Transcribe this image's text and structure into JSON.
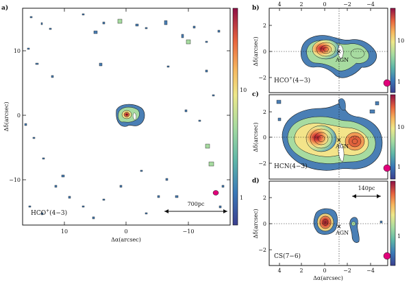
{
  "figure": {
    "panels": [
      {
        "id": "a",
        "tag": "a)",
        "molecule": "HCO",
        "molecule_sup": "+",
        "molecule_trans": "(4−3)",
        "xlabel": "Δα(arcsec)",
        "ylabel": "Δδ(arcsec)",
        "xticks": [
          "10",
          "0",
          "−10"
        ],
        "yticks": [
          "10",
          "0",
          "−10"
        ],
        "scalebar": "700pc",
        "colorbar_ticks": [
          "10",
          "1"
        ]
      },
      {
        "id": "b",
        "tag": "b)",
        "molecule": "HCO",
        "molecule_sup": "+",
        "molecule_trans": "(4−3)",
        "ylabel": "Δδ(arcsec)",
        "top_ticks": [
          "4",
          "2",
          "0",
          "−2",
          "−4"
        ],
        "yticks": [
          "2",
          "0",
          "−2"
        ],
        "agn": "AGN",
        "colorbar_ticks": [
          "10",
          "1"
        ]
      },
      {
        "id": "c",
        "tag": "c)",
        "molecule": "HCN(4−3)",
        "ylabel": "Δδ(arcsec)",
        "yticks": [
          "2",
          "0",
          "−2"
        ],
        "agn": "AGN",
        "colorbar_ticks": [
          "10",
          "1"
        ]
      },
      {
        "id": "d",
        "tag": "d)",
        "molecule": "CS(7−6)",
        "xlabel": "Δα(arcsec)",
        "ylabel": "Δδ(arcsec)",
        "xticks": [
          "4",
          "2",
          "0",
          "−2",
          "−4"
        ],
        "yticks": [
          "2",
          "0",
          "−2"
        ],
        "agn": "AGN",
        "scalebar": "140pc",
        "colorbar_ticks": [
          "1"
        ]
      }
    ],
    "colors": {
      "outer": "#4a7fb5",
      "mid": "#9ed9a6",
      "yellow": "#f2e98a",
      "orange": "#f2a45a",
      "red": "#c8303a",
      "beam": "#e0007a"
    }
  }
}
